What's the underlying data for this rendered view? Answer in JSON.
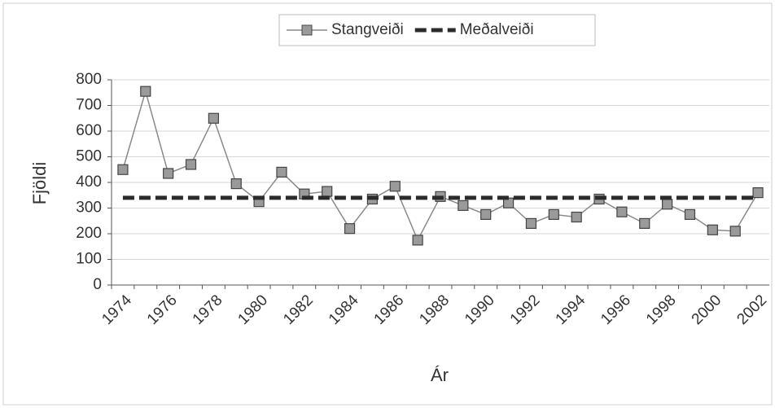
{
  "chart_data": {
    "type": "line",
    "x_label": "Ár",
    "y_label": "Fjöldi",
    "categories": [
      "1974",
      null,
      "1976",
      null,
      "1978",
      null,
      "1980",
      null,
      "1982",
      null,
      "1984",
      null,
      "1986",
      null,
      "1988",
      null,
      "1990",
      null,
      "1992",
      null,
      "1994",
      null,
      "1996",
      null,
      "1998",
      null,
      "2000",
      null,
      "2002"
    ],
    "series": [
      {
        "name": "Stangveiði",
        "color": "#8a8a8a",
        "marker": "square",
        "line_style": "solid",
        "values": [
          450,
          755,
          435,
          470,
          650,
          395,
          325,
          440,
          355,
          365,
          220,
          335,
          385,
          175,
          345,
          310,
          275,
          320,
          240,
          275,
          265,
          335,
          285,
          240,
          315,
          275,
          215,
          210,
          360
        ]
      },
      {
        "name": "Meðalveiði",
        "color": "#2b2b2b",
        "marker": "none",
        "line_style": "dashed",
        "values": [
          340,
          340,
          340,
          340,
          340,
          340,
          340,
          340,
          340,
          340,
          340,
          340,
          340,
          340,
          340,
          340,
          340,
          340,
          340,
          340,
          340,
          340,
          340,
          340,
          340,
          340,
          340,
          340,
          340
        ]
      }
    ],
    "ylim": [
      0,
      800
    ],
    "yticks": [
      0,
      100,
      200,
      300,
      400,
      500,
      600,
      700,
      800
    ],
    "grid": true,
    "legend_position": "top"
  }
}
